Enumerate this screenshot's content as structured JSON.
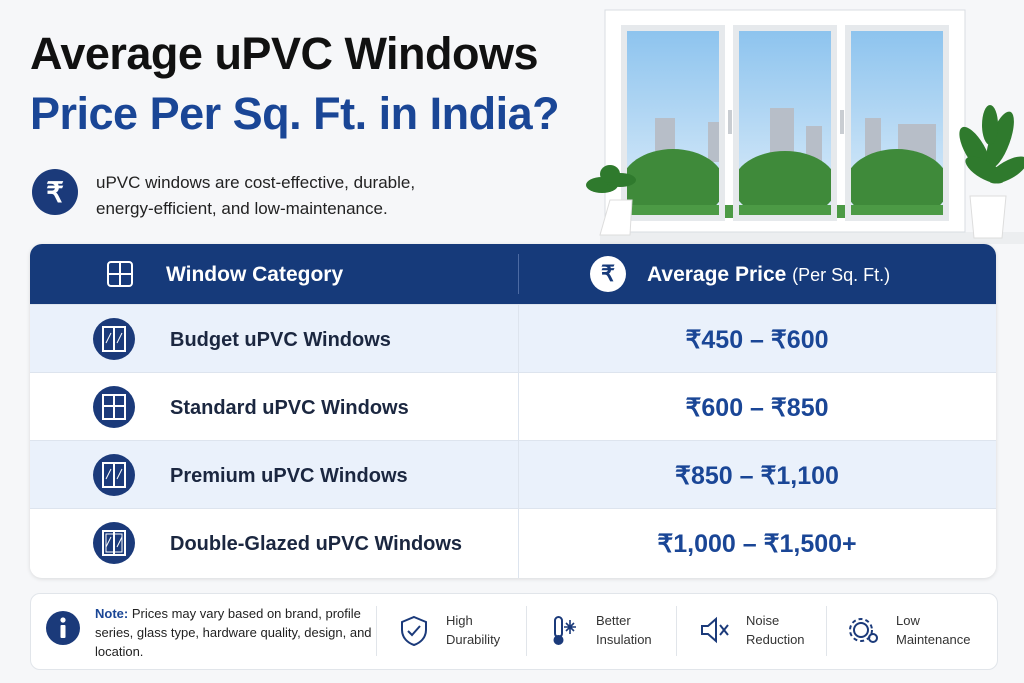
{
  "header": {
    "title_line1": "Average uPVC Windows",
    "title_line2": "Price Per Sq. Ft. in India?"
  },
  "intro": {
    "icon": "₹",
    "text": "uPVC windows are cost-effective, durable, energy-efficient, and low-maintenance."
  },
  "table": {
    "columns": [
      {
        "label": "Window Category"
      },
      {
        "icon": "₹",
        "label": "Average Price",
        "sublabel": "(Per Sq. Ft.)"
      }
    ],
    "rows": [
      [
        "Budget uPVC Windows",
        "₹450 – ₹600"
      ],
      [
        "Standard uPVC Windows",
        "₹600 – ₹850"
      ],
      [
        "Premium uPVC Windows",
        "₹850 – ₹1,100"
      ],
      [
        "Double-Glazed uPVC Windows",
        "₹1,000 – ₹1,500+"
      ]
    ]
  },
  "note": {
    "label": "Note:",
    "text": "Prices may vary based on brand, profile series, glass type, hardware quality, design, and location."
  },
  "features": [
    "High Durability",
    "Better Insulation",
    "Noise Reduction",
    "Low Maintenance"
  ]
}
